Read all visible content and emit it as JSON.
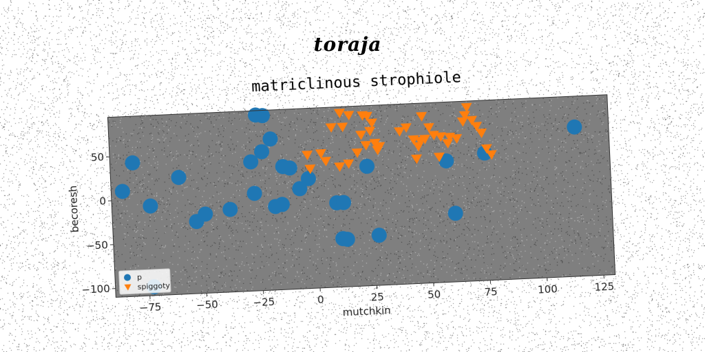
{
  "figure": {
    "title": "toraja"
  },
  "chart_data": {
    "type": "scatter",
    "title": "matriclinous strophiole",
    "xlabel": "mutchkin",
    "ylabel": "becoresh",
    "xlim": [
      -90,
      130
    ],
    "ylim": [
      -110,
      95
    ],
    "xticks": [
      -75,
      -50,
      -25,
      0,
      25,
      50,
      75,
      100,
      125
    ],
    "yticks": [
      -100,
      -50,
      0,
      50
    ],
    "grid": false,
    "legend_position": "lower-left",
    "plot_background": "#7f7f7f",
    "series": [
      {
        "name": "p",
        "marker": "circle",
        "color": "#1f77b4",
        "points": [
          [
            -85,
            10
          ],
          [
            -80,
            42
          ],
          [
            -73,
            -8
          ],
          [
            -60,
            23
          ],
          [
            -53,
            -28
          ],
          [
            -49,
            -20
          ],
          [
            -38,
            -16
          ],
          [
            -28,
            37
          ],
          [
            -27,
            1
          ],
          [
            -25,
            90
          ],
          [
            -22,
            89
          ],
          [
            -23,
            48
          ],
          [
            -19,
            62
          ],
          [
            -18,
            -15
          ],
          [
            -15,
            -13
          ],
          [
            -14,
            30
          ],
          [
            -11,
            28
          ],
          [
            -7,
            4
          ],
          [
            -3,
            15
          ],
          [
            9,
            -14
          ],
          [
            12,
            -14
          ],
          [
            11,
            -55
          ],
          [
            13,
            -56
          ],
          [
            23,
            26
          ],
          [
            27,
            -53
          ],
          [
            58,
            28
          ],
          [
            61,
            -32
          ],
          [
            75,
            35
          ],
          [
            115,
            60
          ],
          [
            -73,
            -100
          ]
        ]
      },
      {
        "name": "spiggoty",
        "marker": "triangle-down",
        "color": "#ff7f0e",
        "points": [
          [
            -3,
            42
          ],
          [
            -2,
            26
          ],
          [
            3,
            43
          ],
          [
            5,
            34
          ],
          [
            8,
            72
          ],
          [
            11,
            27
          ],
          [
            12,
            88
          ],
          [
            13,
            72
          ],
          [
            15,
            30
          ],
          [
            16,
            85
          ],
          [
            19,
            42
          ],
          [
            21,
            62
          ],
          [
            22,
            84
          ],
          [
            23,
            50
          ],
          [
            24,
            83
          ],
          [
            25,
            66
          ],
          [
            26,
            75
          ],
          [
            27,
            52
          ],
          [
            28,
            44
          ],
          [
            29,
            48
          ],
          [
            38,
            64
          ],
          [
            41,
            68
          ],
          [
            44,
            54
          ],
          [
            45,
            32
          ],
          [
            46,
            46
          ],
          [
            47,
            52
          ],
          [
            48,
            80
          ],
          [
            49,
            54
          ],
          [
            51,
            67
          ],
          [
            53,
            58
          ],
          [
            55,
            33
          ],
          [
            56,
            56
          ],
          [
            59,
            48
          ],
          [
            60,
            55
          ],
          [
            63,
            53
          ],
          [
            66,
            72
          ],
          [
            67,
            79
          ],
          [
            68,
            88
          ],
          [
            70,
            73
          ],
          [
            72,
            66
          ],
          [
            74,
            58
          ],
          [
            76,
            40
          ],
          [
            78,
            33
          ]
        ]
      }
    ]
  }
}
